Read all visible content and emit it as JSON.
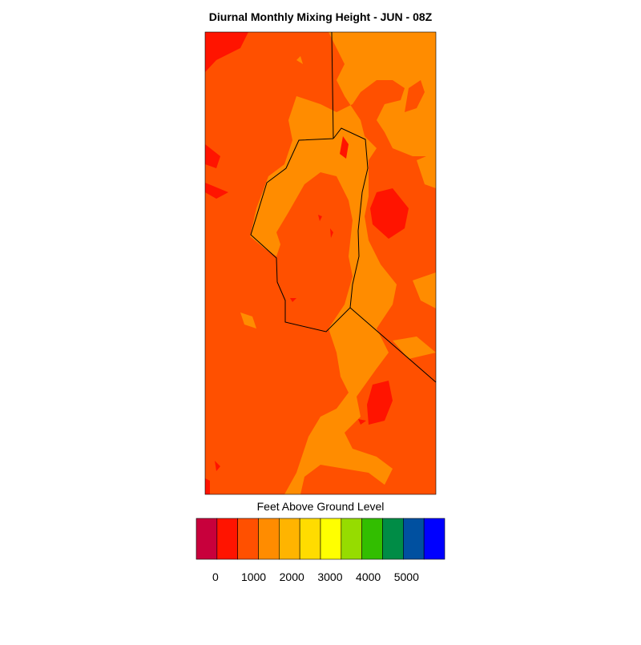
{
  "title": "Diurnal Monthly Mixing Height - JUN - 08Z",
  "colorbar": {
    "label": "Feet Above Ground Level",
    "range": [
      -500,
      6000
    ],
    "ticks": [
      0,
      1000,
      2000,
      3000,
      4000,
      5000
    ],
    "colors": [
      "#c8003c",
      "#ff1400",
      "#ff5000",
      "#ff8c00",
      "#ffb400",
      "#ffdc00",
      "#ffff00",
      "#96dc00",
      "#32be00",
      "#008c46",
      "#0050a0",
      "#0000ff"
    ]
  }
}
